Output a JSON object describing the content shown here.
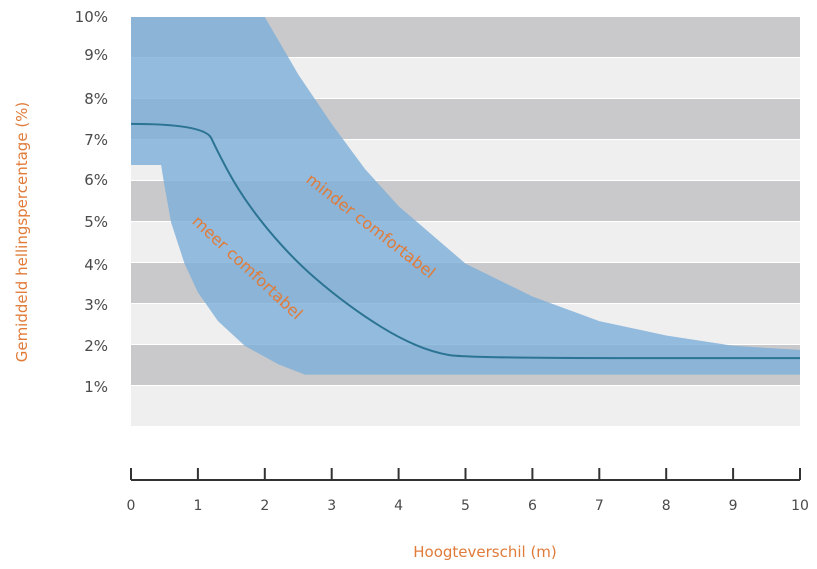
{
  "chart_data": {
    "type": "area",
    "title": "",
    "xlabel": "Hoogteverschil (m)",
    "ylabel": "Gemiddeld hellingspercentage (%)",
    "xlim": [
      0,
      10
    ],
    "ylim": [
      0,
      10
    ],
    "x_ticks": [
      "0",
      "1",
      "2",
      "3",
      "4",
      "5",
      "6",
      "7",
      "8",
      "9",
      "10"
    ],
    "y_ticks": [
      "1%",
      "2%",
      "3%",
      "4%",
      "5%",
      "6%",
      "7%",
      "8%",
      "9%",
      "10%"
    ],
    "grid": "alternating horizontal bands",
    "colors": {
      "band_dark": "#c9c9cb",
      "band_light": "#efeff0",
      "area": "#7fb0d8",
      "line": "#2c7494",
      "label": "#e07b39",
      "axis": "#333333"
    },
    "series": [
      {
        "values": [
          [
            0,
            7.4
          ],
          [
            1.1,
            7.4
          ],
          [
            1.3,
            6.7
          ],
          [
            1.6,
            5.8
          ],
          [
            2.0,
            4.9
          ],
          [
            2.5,
            4.0
          ],
          [
            3.0,
            3.3
          ],
          [
            3.5,
            2.7
          ],
          [
            4.0,
            2.2
          ],
          [
            4.5,
            1.85
          ],
          [
            5.0,
            1.7
          ],
          [
            10,
            1.7
          ]
        ]
      }
    ],
    "bands": [
      {
        "upper": [
          [
            0,
            10
          ],
          [
            2.0,
            10
          ],
          [
            2.5,
            8.6
          ],
          [
            3.0,
            7.4
          ],
          [
            3.5,
            6.3
          ],
          [
            4.0,
            5.4
          ],
          [
            5.0,
            4.0
          ],
          [
            6.0,
            3.2
          ],
          [
            7.0,
            2.6
          ],
          [
            8.0,
            2.25
          ],
          [
            9.0,
            2.0
          ],
          [
            10,
            1.9
          ]
        ],
        "lower": [
          [
            0,
            6.4
          ],
          [
            0.45,
            6.4
          ],
          [
            0.5,
            5.9
          ],
          [
            0.6,
            5.0
          ],
          [
            0.8,
            4.0
          ],
          [
            1.0,
            3.3
          ],
          [
            1.3,
            2.6
          ],
          [
            1.7,
            2.0
          ],
          [
            2.2,
            1.55
          ],
          [
            2.6,
            1.3
          ],
          [
            10,
            1.3
          ]
        ]
      }
    ],
    "annotations": [
      {
        "text": "meer comfortabel",
        "x": 0.9,
        "y": 5.0,
        "angle": 43
      },
      {
        "text": "minder comfortabel",
        "x": 2.6,
        "y": 6.0,
        "angle": 38
      }
    ]
  }
}
